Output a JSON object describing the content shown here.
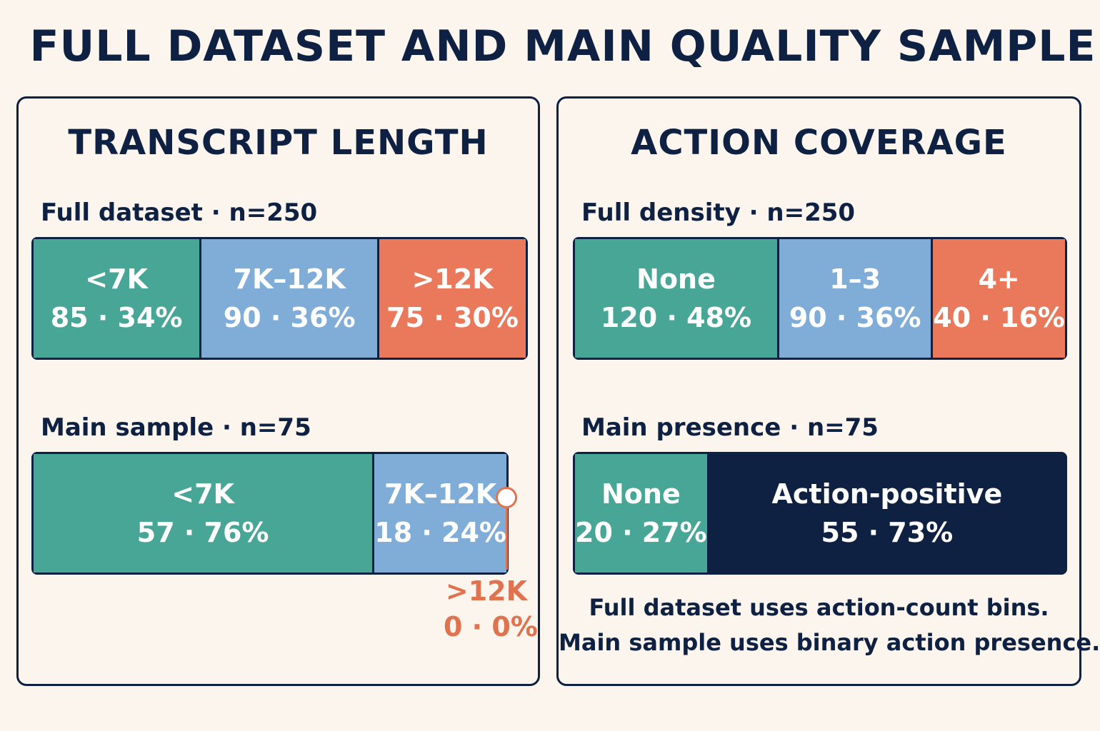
{
  "title": "FULL DATASET AND MAIN QUALITY SAMPLE",
  "colors": {
    "teal": "#48a696",
    "blue": "#7fadd8",
    "orange": "#e9795a",
    "navy": "#0f2142",
    "callout": "#e0734f",
    "background": "#fbf5ee"
  },
  "chart_data": [
    {
      "type": "bar",
      "orientation": "horizontal-stacked-100",
      "title": "TRANSCRIPT LENGTH",
      "rows": [
        {
          "label": "Full dataset · n=250",
          "segments": [
            {
              "name": "<7K",
              "count": 85,
              "percent": 34,
              "value_text": "85 · 34%",
              "color": "#48a696"
            },
            {
              "name": "7K–12K",
              "count": 90,
              "percent": 36,
              "value_text": "90 · 36%",
              "color": "#7fadd8"
            },
            {
              "name": ">12K",
              "count": 75,
              "percent": 30,
              "value_text": "75 · 30%",
              "color": "#e9795a"
            }
          ]
        },
        {
          "label": "Main sample · n=75",
          "segments": [
            {
              "name": "<7K",
              "count": 57,
              "percent": 76,
              "value_text": "57 · 76%",
              "color": "#48a696"
            },
            {
              "name": "7K–12K",
              "count": 18,
              "percent": 24,
              "value_text": "18 · 24%",
              "color": "#7fadd8"
            },
            {
              "name": ">12K",
              "count": 0,
              "percent": 0,
              "value_text": "0 · 0%",
              "color": "#e0734f"
            }
          ]
        }
      ]
    },
    {
      "type": "bar",
      "orientation": "horizontal-stacked-100",
      "title": "ACTION COVERAGE",
      "rows": [
        {
          "label": "Full density · n=250",
          "segments": [
            {
              "name": "None",
              "count": 120,
              "percent": 48,
              "value_text": "120 · 48%",
              "color": "#48a696"
            },
            {
              "name": "1–3",
              "count": 90,
              "percent": 36,
              "value_text": "90 · 36%",
              "color": "#7fadd8"
            },
            {
              "name": "4+",
              "count": 40,
              "percent": 16,
              "value_text": "40 · 16%",
              "color": "#e9795a"
            }
          ]
        },
        {
          "label": "Main presence · n=75",
          "segments": [
            {
              "name": "None",
              "count": 20,
              "percent": 27,
              "value_text": "20 · 27%",
              "color": "#48a696"
            },
            {
              "name": "Action-positive",
              "count": 55,
              "percent": 73,
              "value_text": "55 · 73%",
              "color": "#0f2142"
            }
          ]
        }
      ],
      "notes": [
        "Full dataset uses action-count bins.",
        "Main sample uses binary action presence."
      ]
    }
  ]
}
